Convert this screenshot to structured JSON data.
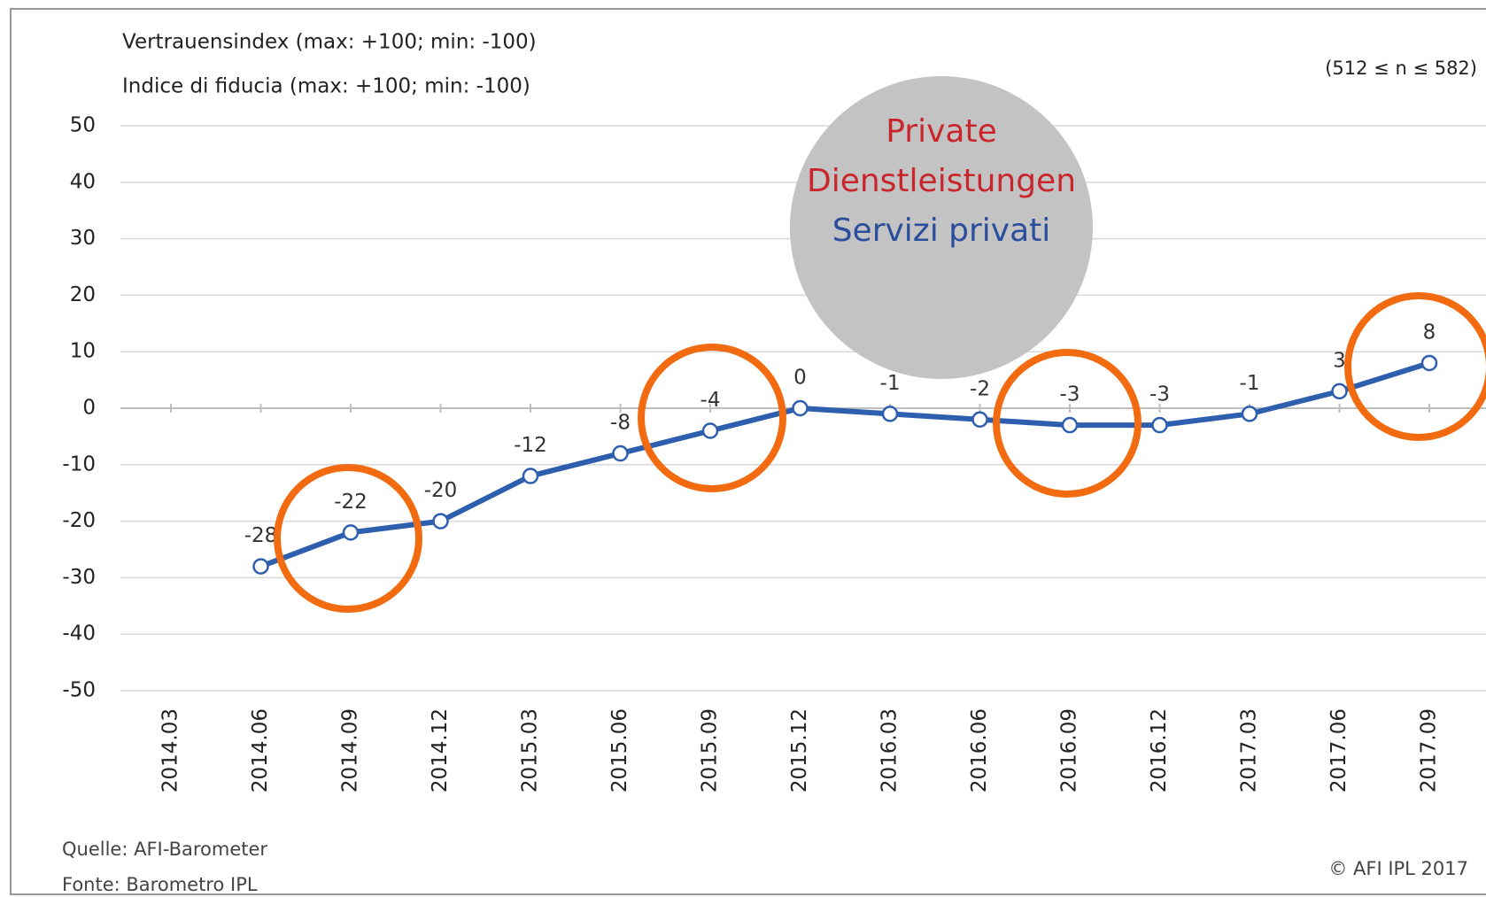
{
  "chart_data": {
    "type": "line",
    "title": "Vertrauensindex (max: +100; min: -100)",
    "subtitle": "Indice di fiducia (max: +100; min: -100)",
    "sample_note": "(512 ≤ n ≤ 582)",
    "bubble_lines": [
      "Private",
      "Dienstleistungen",
      "Servizi privati"
    ],
    "source_lines": [
      "Quelle: AFI-Barometer",
      "Fonte: Barometro IPL"
    ],
    "copyright": "© AFI IPL 2017",
    "categories": [
      "2014.03",
      "2014.06",
      "2014.09",
      "2014.12",
      "2015.03",
      "2015.06",
      "2015.09",
      "2015.12",
      "2016.03",
      "2016.06",
      "2016.09",
      "2016.12",
      "2017.03",
      "2017.06",
      "2017.09"
    ],
    "series": [
      {
        "name": "Vertrauensindex",
        "color": "#2e5eae",
        "values": [
          null,
          -28,
          -22,
          -20,
          -12,
          -8,
          -4,
          0,
          -1,
          -2,
          -3,
          -3,
          -1,
          3,
          8
        ]
      }
    ],
    "ylim": [
      -50,
      50
    ],
    "yticks": [
      -50,
      -40,
      -30,
      -20,
      -10,
      0,
      10,
      20,
      30,
      40,
      50
    ],
    "grid": true
  }
}
